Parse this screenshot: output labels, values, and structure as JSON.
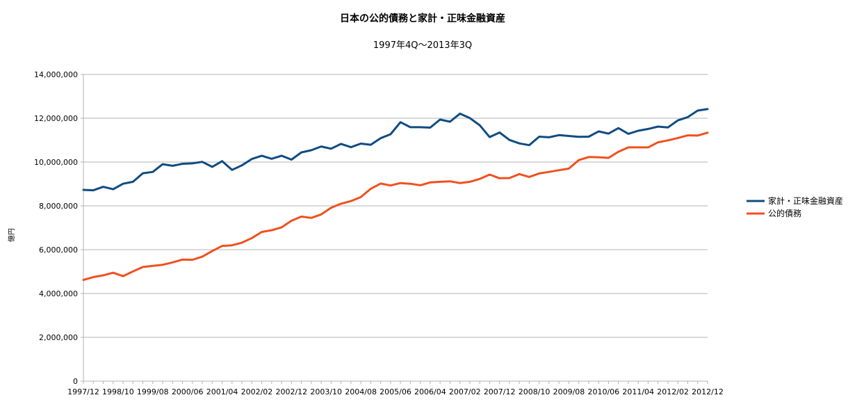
{
  "chart_data": {
    "type": "line",
    "title": "日本の公的債務と家計・正味金融資産",
    "subtitle": "1997年4Q〜2013年3Q",
    "ylabel": "億円",
    "xlabel": "",
    "ylim": [
      0,
      14000000
    ],
    "yticks": [
      "0",
      "2,000,000",
      "4,000,000",
      "6,000,000",
      "8,000,000",
      "10,000,000",
      "12,000,000",
      "14,000,000"
    ],
    "ytick_values": [
      0,
      2000000,
      4000000,
      6000000,
      8000000,
      10000000,
      12000000,
      14000000
    ],
    "x_tick_labels": [
      "1997/12",
      "1998/10",
      "1999/08",
      "2000/06",
      "2001/04",
      "2002/02",
      "2002/12",
      "2003/10",
      "2004/08",
      "2005/06",
      "2006/04",
      "2007/02",
      "2007/12",
      "2008/10",
      "2009/08",
      "2010/06",
      "2011/04",
      "2012/02",
      "2012/12"
    ],
    "grid": true,
    "legend_position": "right",
    "series": [
      {
        "name": "家計・正味金融資産",
        "color": "#0f4c81",
        "values": [
          8730000,
          8710000,
          8870000,
          8760000,
          9010000,
          9100000,
          9490000,
          9550000,
          9900000,
          9830000,
          9920000,
          9940000,
          10010000,
          9780000,
          10040000,
          9640000,
          9850000,
          10140000,
          10290000,
          10150000,
          10290000,
          10110000,
          10440000,
          10540000,
          10710000,
          10610000,
          10830000,
          10680000,
          10840000,
          10790000,
          11090000,
          11270000,
          11820000,
          11590000,
          11590000,
          11570000,
          11940000,
          11840000,
          12210000,
          12010000,
          11680000,
          11140000,
          11350000,
          11010000,
          10850000,
          10770000,
          11160000,
          11130000,
          11230000,
          11190000,
          11150000,
          11160000,
          11400000,
          11300000,
          11550000,
          11290000,
          11430000,
          11510000,
          11620000,
          11580000,
          11900000,
          12050000,
          12350000,
          12420000
        ]
      },
      {
        "name": "公的債務",
        "color": "#f0501e",
        "values": [
          4620000,
          4750000,
          4830000,
          4950000,
          4790000,
          5010000,
          5210000,
          5260000,
          5310000,
          5420000,
          5550000,
          5540000,
          5680000,
          5940000,
          6170000,
          6200000,
          6320000,
          6530000,
          6810000,
          6890000,
          7020000,
          7320000,
          7510000,
          7450000,
          7610000,
          7910000,
          8100000,
          8220000,
          8400000,
          8780000,
          9020000,
          8930000,
          9040000,
          9010000,
          8940000,
          9070000,
          9100000,
          9120000,
          9040000,
          9100000,
          9230000,
          9430000,
          9260000,
          9270000,
          9450000,
          9320000,
          9480000,
          9550000,
          9630000,
          9700000,
          10090000,
          10230000,
          10220000,
          10190000,
          10470000,
          10670000,
          10670000,
          10670000,
          10900000,
          10990000,
          11100000,
          11220000,
          11210000,
          11340000
        ]
      }
    ]
  }
}
